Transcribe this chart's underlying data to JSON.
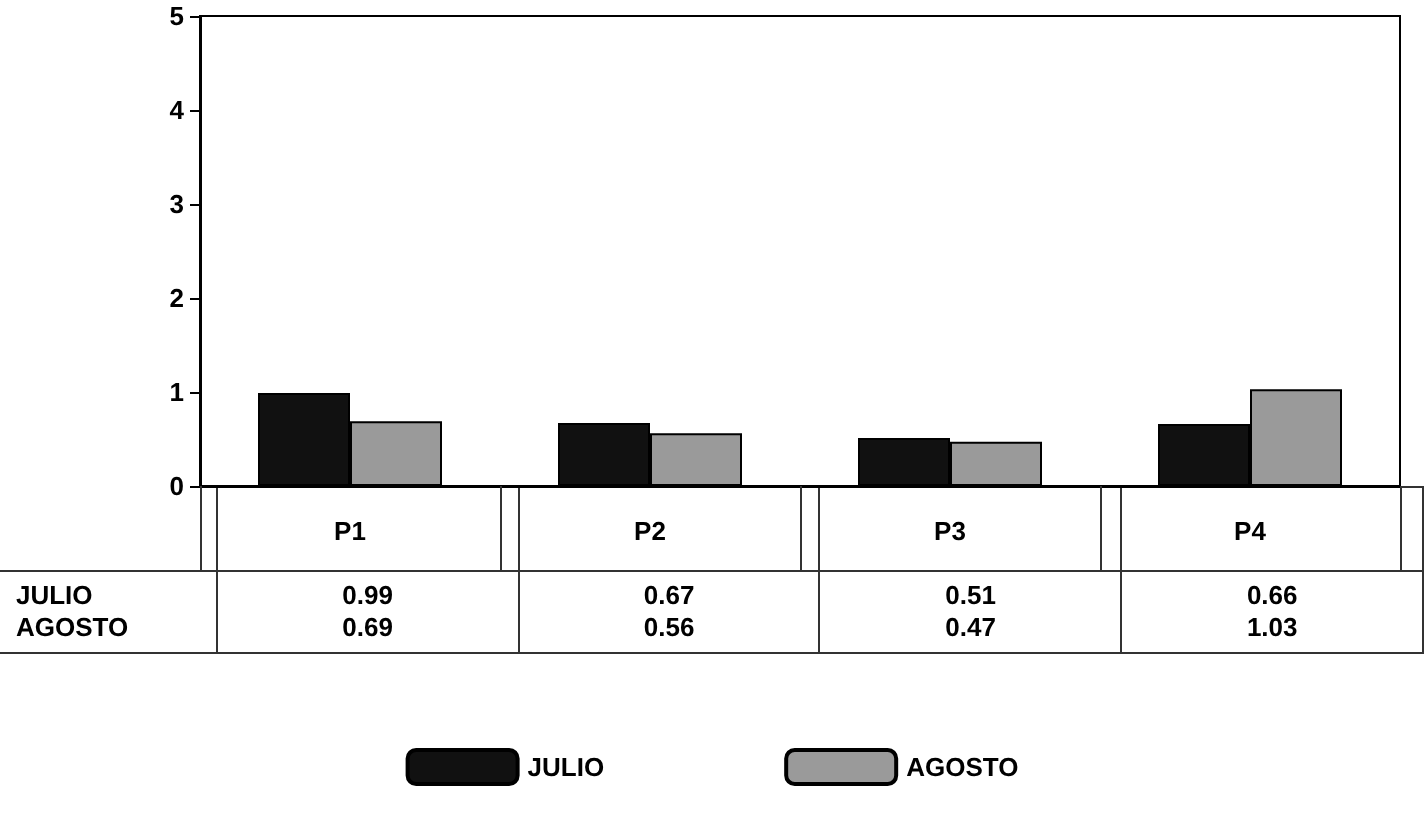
{
  "chart_data": {
    "type": "bar",
    "categories": [
      "P1",
      "P2",
      "P3",
      "P4"
    ],
    "series": [
      {
        "name": "JULIO",
        "color": "#111111",
        "values": [
          0.99,
          0.67,
          0.51,
          0.66
        ]
      },
      {
        "name": "AGOSTO",
        "color": "#9a9a9a",
        "values": [
          0.69,
          0.56,
          0.47,
          1.03
        ]
      }
    ],
    "ylim": [
      0,
      5
    ],
    "yticks": [
      0,
      1,
      2,
      3,
      4,
      5
    ],
    "grid": false,
    "legend": "bottom",
    "data_labels": true
  }
}
